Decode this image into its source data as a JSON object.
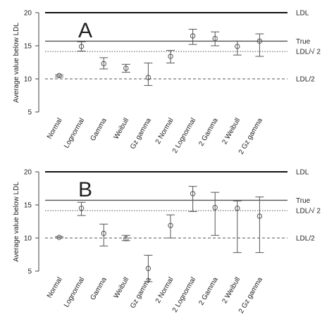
{
  "chart_data": [
    {
      "type": "scatter",
      "panel_label": "A",
      "title": "",
      "xlabel": "",
      "ylabel": "Average value below LDL",
      "ylim": [
        5,
        20
      ],
      "yticks": [
        5,
        10,
        15,
        20
      ],
      "categories": [
        "Normal",
        "Lognormal",
        "Gamma",
        "Weibull",
        "Gz gamma",
        "2 Normal",
        "2 Lognormal",
        "2 Gamma",
        "2 Weibull",
        "2 Gz gamma"
      ],
      "series": [
        {
          "values": [
            10.5,
            14.9,
            12.3,
            11.6,
            10.2,
            13.4,
            16.5,
            16.1,
            14.9,
            15.7
          ],
          "lower": [
            10.3,
            14.2,
            11.5,
            11.0,
            9.0,
            12.4,
            15.2,
            15.0,
            13.6,
            13.4
          ],
          "upper": [
            10.6,
            15.6,
            13.2,
            12.2,
            12.4,
            14.3,
            17.5,
            17.1,
            15.7,
            16.8
          ]
        }
      ],
      "reference_lines": [
        {
          "label": "LDL",
          "value": 20,
          "style": "solid"
        },
        {
          "label": "True",
          "value": 15.7,
          "style": "solid"
        },
        {
          "label": "LDL/√ 2",
          "value": 14.14,
          "style": "dotted"
        },
        {
          "label": "LDL/2",
          "value": 10,
          "style": "dashed"
        }
      ],
      "colors": {
        "points": "#555555",
        "ldl": "#111111",
        "true": "#555555",
        "ref": "#555555"
      }
    },
    {
      "type": "scatter",
      "panel_label": "B",
      "title": "",
      "xlabel": "",
      "ylabel": "Average value below LDL",
      "ylim": [
        5,
        20
      ],
      "yticks": [
        5,
        10,
        15,
        20
      ],
      "categories": [
        "Normal",
        "Lognormal",
        "Gamma",
        "Weibull",
        "Gz gamma",
        "2 Normal",
        "2 Lognormal",
        "2 Gamma",
        "2 Weibull",
        "2 Gz gamma"
      ],
      "series": [
        {
          "values": [
            10.1,
            14.5,
            10.7,
            9.9,
            5.4,
            11.9,
            16.7,
            14.6,
            14.5,
            13.3
          ],
          "lower": [
            10.0,
            13.4,
            8.8,
            9.6,
            3.4,
            10.0,
            14.0,
            10.4,
            7.8,
            7.8
          ],
          "upper": [
            10.2,
            15.4,
            12.1,
            10.4,
            7.4,
            13.5,
            17.8,
            16.9,
            15.6,
            16.2
          ]
        }
      ],
      "reference_lines": [
        {
          "label": "LDL",
          "value": 20,
          "style": "solid"
        },
        {
          "label": "True",
          "value": 15.7,
          "style": "solid"
        },
        {
          "label": "LDL/√ 2",
          "value": 14.14,
          "style": "dotted"
        },
        {
          "label": "LDL/2",
          "value": 10,
          "style": "dashed"
        }
      ],
      "colors": {
        "points": "#555555",
        "ldl": "#111111",
        "true": "#555555",
        "ref": "#555555"
      }
    }
  ]
}
